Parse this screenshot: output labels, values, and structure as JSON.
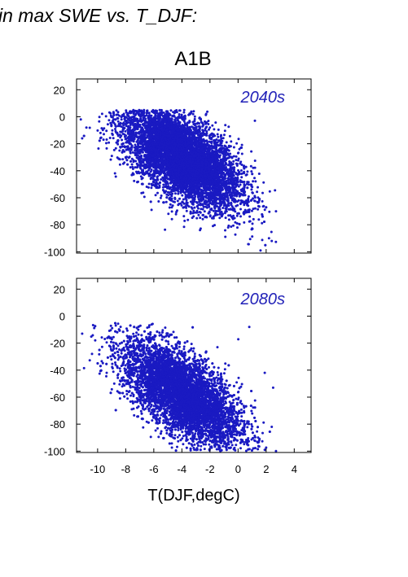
{
  "heading": "in max SWE vs. T_DJF:",
  "chart_data": {
    "type": "scatter",
    "scenario": "A1B",
    "xlabel": "T(DJF,degC)",
    "ylabel": "",
    "xlim": [
      -11.5,
      5.2
    ],
    "xticks": [
      -10,
      -8,
      -6,
      -4,
      -2,
      0,
      2,
      4
    ],
    "ylim": [
      -101,
      28
    ],
    "yticks": [
      -100,
      -80,
      -60,
      -40,
      -20,
      0,
      20
    ],
    "grid": false,
    "marker_color": "#1a1ac2",
    "panels": [
      {
        "label": "2040s",
        "label_color": "#2222b8",
        "n_points_approx": 7000,
        "point_cloud": {
          "x_range": [
            -11.2,
            2.7
          ],
          "y_range": [
            -100,
            5
          ],
          "dense_core_x": [
            -6.5,
            -1.5
          ],
          "dense_core_y": [
            -55,
            -5
          ],
          "trend": "negative"
        },
        "outliers": [
          {
            "x": -11.2,
            "y": -2
          },
          {
            "x": -10.8,
            "y": -8
          },
          {
            "x": -11.1,
            "y": -16
          },
          {
            "x": 1.2,
            "y": -3
          },
          {
            "x": 2.2,
            "y": -90
          },
          {
            "x": 2.7,
            "y": -70
          },
          {
            "x": 1.6,
            "y": -99
          },
          {
            "x": 2.4,
            "y": -92
          }
        ]
      },
      {
        "label": "2080s",
        "label_color": "#2222b8",
        "n_points_approx": 7000,
        "point_cloud": {
          "x_range": [
            -11.2,
            2.8
          ],
          "y_range": [
            -100,
            -5
          ],
          "dense_core_x": [
            -7,
            -1
          ],
          "dense_core_y": [
            -90,
            -25
          ],
          "trend": "negative"
        },
        "outliers": [
          {
            "x": -11.1,
            "y": -13
          },
          {
            "x": -10.4,
            "y": -28
          },
          {
            "x": 0.8,
            "y": -8
          },
          {
            "x": 1.9,
            "y": -42
          },
          {
            "x": 2.5,
            "y": -53
          },
          {
            "x": 2.4,
            "y": -82
          },
          {
            "x": 2.7,
            "y": -100
          }
        ]
      }
    ]
  }
}
